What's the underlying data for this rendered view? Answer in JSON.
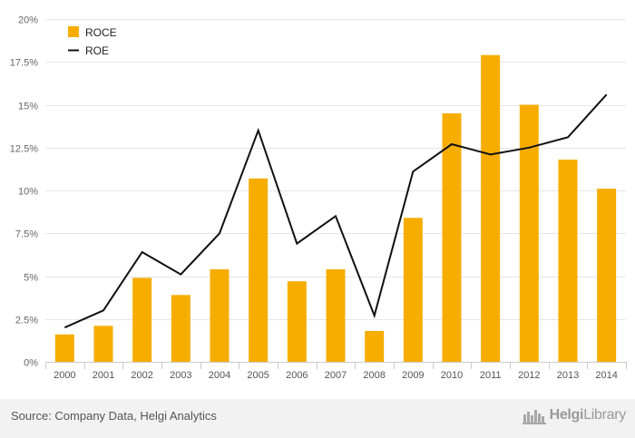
{
  "chart_data": {
    "type": "bar",
    "categories": [
      "2000",
      "2001",
      "2002",
      "2003",
      "2004",
      "2005",
      "2006",
      "2007",
      "2008",
      "2009",
      "2010",
      "2011",
      "2012",
      "2013",
      "2014"
    ],
    "series": [
      {
        "name": "ROCE",
        "kind": "bar",
        "color": "#f6ad00",
        "values": [
          1.6,
          2.1,
          4.9,
          3.9,
          5.4,
          10.7,
          4.7,
          5.4,
          1.8,
          8.4,
          14.5,
          17.9,
          15.0,
          11.8,
          10.1
        ]
      },
      {
        "name": "ROE",
        "kind": "line",
        "color": "#111111",
        "values": [
          2.0,
          3.0,
          6.4,
          5.1,
          7.5,
          13.5,
          6.9,
          8.5,
          2.7,
          11.1,
          12.7,
          12.1,
          12.5,
          13.1,
          15.6
        ]
      }
    ],
    "ylim": [
      0,
      20
    ],
    "yticks": [
      0,
      2.5,
      5,
      7.5,
      10,
      12.5,
      15,
      17.5,
      20
    ],
    "ytick_labels": [
      "0%",
      "2.5%",
      "5%",
      "7.5%",
      "10%",
      "12.5%",
      "15%",
      "17.5%",
      "20%"
    ],
    "grid": true,
    "legend_position": "top-left"
  },
  "footer": {
    "source": "Source: Company Data, Helgi Analytics",
    "brand_bold": "Helgi",
    "brand_light": "Library"
  }
}
